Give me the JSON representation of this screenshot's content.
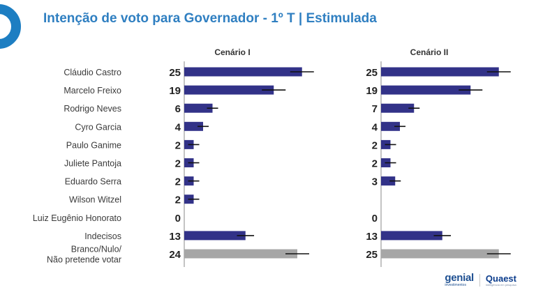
{
  "header": {
    "title": "Intenção de voto para Governador - 1º T | Estimulada"
  },
  "footer": {
    "genial": {
      "name": "genial",
      "tagline": "investimentos"
    },
    "quaest": {
      "name": "Quaest",
      "tagline": "inteligência em pesquisa"
    }
  },
  "colors": {
    "bar": "#323288",
    "bar_muted": "#a6a6a6",
    "title": "#2f7fc1",
    "logo": "#1d7ec2"
  },
  "chart_data": {
    "type": "bar",
    "orientation": "horizontal",
    "categories": [
      "Cláudio Castro",
      "Marcelo Freixo",
      "Rodrigo Neves",
      "Cyro Garcia",
      "Paulo Ganime",
      "Juliete Pantoja",
      "Eduardo Serra",
      "Wilson Witzel",
      "Luiz Eugênio Honorato",
      "Indecisos",
      "Branco/Nulo/\nNão pretende votar"
    ],
    "series": [
      {
        "name": "Cenário I",
        "values": [
          25,
          19,
          6,
          4,
          2,
          2,
          2,
          2,
          0,
          13,
          24
        ]
      },
      {
        "name": "Cenário II",
        "values": [
          25,
          19,
          7,
          4,
          2,
          2,
          3,
          null,
          0,
          13,
          25
        ]
      }
    ],
    "error_bars": true,
    "xlim": [
      0,
      30
    ]
  }
}
